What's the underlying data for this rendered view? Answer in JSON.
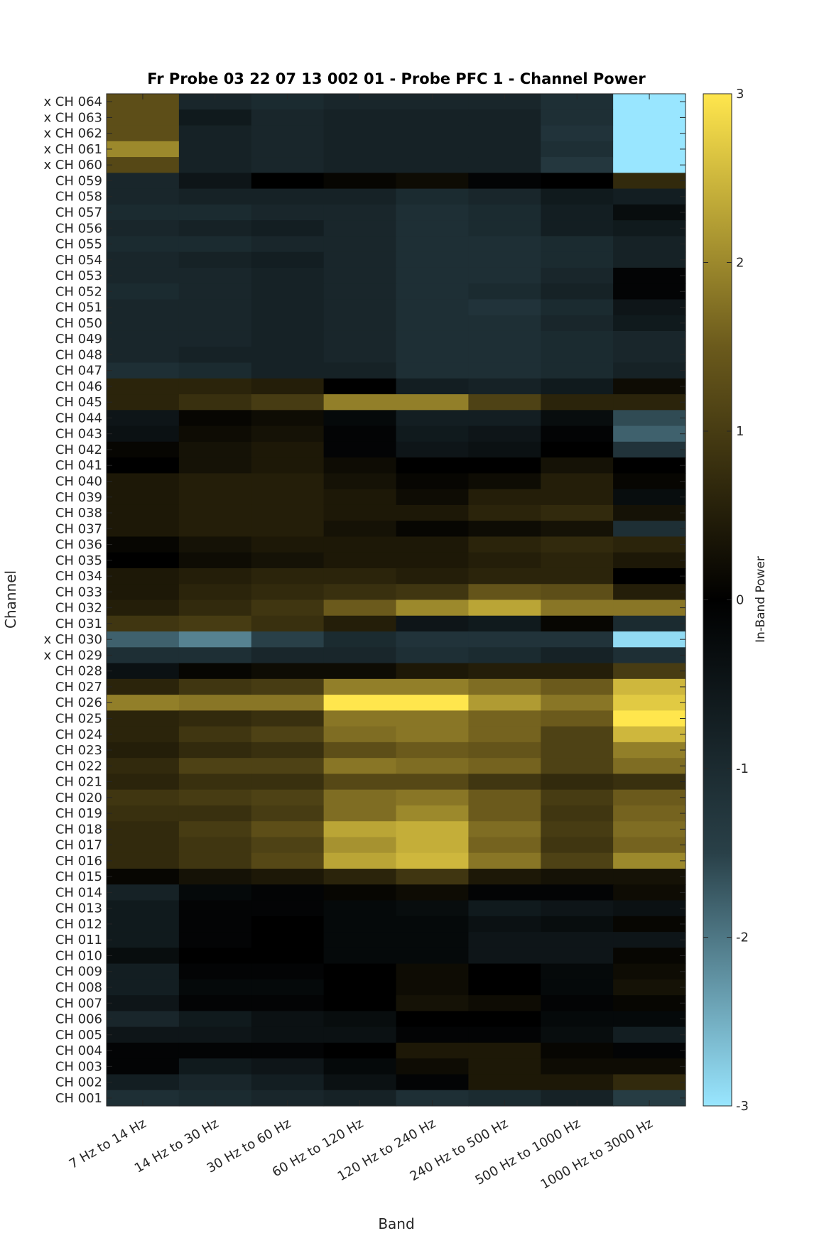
{
  "chart_data": {
    "type": "heatmap",
    "title": "Fr Probe 03 22 07 13 002 01 - Probe PFC 1 - Channel Power",
    "xlabel": "Band",
    "ylabel": "Channel",
    "colorbar_label": "In-Band Power",
    "colorbar_range": [
      -3,
      3
    ],
    "colorbar_ticks": [
      "3",
      "2",
      "1",
      "0",
      "-1",
      "-2",
      "-3"
    ],
    "colormap_stops": [
      "#99e6ff",
      "#294048",
      "#000000",
      "#6b5a1c",
      "#ffe64d"
    ],
    "x_categories": [
      "7 Hz to 14 Hz",
      "14 Hz to 30 Hz",
      "30 Hz to 60 Hz",
      "60 Hz to 120 Hz",
      "120 Hz to 240 Hz",
      "240 Hz to 500 Hz",
      "500 Hz to 1000 Hz",
      "1000 Hz to 3000 Hz"
    ],
    "y_categories": [
      "x CH 064",
      "x CH 063",
      "x CH 062",
      "x CH 061",
      "x CH 060",
      "CH 059",
      "CH 058",
      "CH 057",
      "CH 056",
      "CH 055",
      "CH 054",
      "CH 053",
      "CH 052",
      "CH 051",
      "CH 050",
      "CH 049",
      "CH 048",
      "CH 047",
      "CH 046",
      "CH 045",
      "CH 044",
      "CH 043",
      "CH 042",
      "CH 041",
      "CH 040",
      "CH 039",
      "CH 038",
      "CH 037",
      "CH 036",
      "CH 035",
      "CH 034",
      "CH 033",
      "CH 032",
      "CH 031",
      "x CH 030",
      "x CH 029",
      "CH 028",
      "CH 027",
      "CH 026",
      "CH 025",
      "CH 024",
      "CH 023",
      "CH 022",
      "CH 021",
      "CH 020",
      "CH 019",
      "CH 018",
      "CH 017",
      "CH 016",
      "CH 015",
      "CH 014",
      "CH 013",
      "CH 012",
      "CH 011",
      "CH 010",
      "CH 009",
      "CH 008",
      "CH 007",
      "CH 006",
      "CH 005",
      "CH 004",
      "CH 003",
      "CH 002",
      "CH 001"
    ],
    "values": [
      [
        1.3,
        -0.9,
        -1.0,
        -0.9,
        -0.9,
        -0.9,
        -1.1,
        -3.0
      ],
      [
        1.3,
        -0.6,
        -0.9,
        -0.8,
        -0.8,
        -0.8,
        -1.1,
        -3.0
      ],
      [
        1.3,
        -0.8,
        -0.9,
        -0.8,
        -0.8,
        -0.8,
        -1.2,
        -3.0
      ],
      [
        2.0,
        -0.8,
        -0.9,
        -0.8,
        -0.8,
        -0.8,
        -1.1,
        -3.0
      ],
      [
        1.2,
        -0.8,
        -0.9,
        -0.8,
        -0.8,
        -0.8,
        -1.3,
        -3.0
      ],
      [
        -0.9,
        -0.5,
        0.0,
        0.1,
        0.2,
        -0.1,
        0.0,
        0.7
      ],
      [
        -0.9,
        -0.8,
        -0.8,
        -0.8,
        -1.0,
        -0.9,
        -0.6,
        -0.7
      ],
      [
        -1.0,
        -1.0,
        -0.9,
        -0.9,
        -1.1,
        -1.0,
        -0.7,
        -0.3
      ],
      [
        -0.9,
        -0.8,
        -0.7,
        -0.9,
        -1.1,
        -1.0,
        -0.7,
        -0.6
      ],
      [
        -1.0,
        -1.0,
        -0.9,
        -0.9,
        -1.1,
        -1.1,
        -1.0,
        -0.8
      ],
      [
        -0.9,
        -0.8,
        -0.7,
        -0.9,
        -1.1,
        -1.1,
        -1.0,
        -0.8
      ],
      [
        -0.9,
        -0.9,
        -0.8,
        -0.9,
        -1.1,
        -1.1,
        -0.9,
        -0.1
      ],
      [
        -1.0,
        -0.9,
        -0.8,
        -0.9,
        -1.1,
        -1.0,
        -0.8,
        -0.1
      ],
      [
        -0.9,
        -0.9,
        -0.8,
        -0.9,
        -1.1,
        -1.2,
        -1.0,
        -0.5
      ],
      [
        -0.9,
        -0.9,
        -0.8,
        -0.9,
        -1.1,
        -1.1,
        -0.9,
        -0.6
      ],
      [
        -0.9,
        -0.9,
        -0.8,
        -0.9,
        -1.1,
        -1.1,
        -1.0,
        -0.9
      ],
      [
        -0.9,
        -0.8,
        -0.8,
        -0.9,
        -1.1,
        -1.1,
        -1.0,
        -0.9
      ],
      [
        -1.1,
        -1.0,
        -0.8,
        -0.8,
        -1.1,
        -1.1,
        -1.0,
        -0.8
      ],
      [
        0.6,
        0.6,
        0.5,
        0.0,
        -0.7,
        -0.8,
        -0.6,
        0.2
      ],
      [
        0.6,
        0.8,
        1.0,
        1.9,
        1.9,
        1.1,
        0.6,
        0.6
      ],
      [
        -0.5,
        0.1,
        0.2,
        -0.2,
        -0.7,
        -0.7,
        -0.3,
        -1.6
      ],
      [
        -0.4,
        0.2,
        0.3,
        -0.1,
        -0.6,
        -0.5,
        -0.1,
        -1.8
      ],
      [
        0.1,
        0.3,
        0.4,
        -0.1,
        -0.5,
        -0.4,
        0.0,
        -1.2
      ],
      [
        0.0,
        0.3,
        0.4,
        0.2,
        0.0,
        0.0,
        0.3,
        0.0
      ],
      [
        0.4,
        0.5,
        0.5,
        0.3,
        0.1,
        0.2,
        0.5,
        0.1
      ],
      [
        0.4,
        0.5,
        0.5,
        0.4,
        0.2,
        0.5,
        0.5,
        -0.3
      ],
      [
        0.4,
        0.5,
        0.5,
        0.4,
        0.4,
        0.6,
        0.7,
        0.3
      ],
      [
        0.4,
        0.5,
        0.5,
        0.3,
        0.1,
        0.2,
        0.3,
        -1.1
      ],
      [
        0.1,
        0.3,
        0.4,
        0.4,
        0.4,
        0.6,
        0.7,
        0.6
      ],
      [
        0.0,
        0.2,
        0.3,
        0.4,
        0.4,
        0.5,
        0.6,
        0.4
      ],
      [
        0.4,
        0.5,
        0.6,
        0.6,
        0.5,
        0.6,
        0.6,
        0.0
      ],
      [
        0.4,
        0.6,
        0.7,
        0.8,
        0.9,
        1.4,
        1.3,
        0.5
      ],
      [
        0.5,
        0.7,
        0.9,
        1.5,
        2.0,
        2.3,
        1.8,
        1.8
      ],
      [
        0.9,
        1.0,
        0.8,
        0.5,
        -0.5,
        -0.6,
        0.1,
        -1.0
      ],
      [
        -1.8,
        -2.1,
        -1.5,
        -1.0,
        -1.2,
        -1.2,
        -1.2,
        -2.9
      ],
      [
        -1.1,
        -1.1,
        -0.9,
        -0.9,
        -1.1,
        -1.0,
        -0.8,
        -1.1
      ],
      [
        -0.4,
        0.1,
        0.2,
        0.2,
        0.4,
        0.5,
        0.5,
        1.0
      ],
      [
        0.6,
        0.9,
        1.0,
        1.9,
        1.9,
        1.7,
        1.5,
        2.5
      ],
      [
        1.9,
        1.8,
        1.8,
        3.0,
        3.0,
        2.2,
        1.8,
        2.7
      ],
      [
        0.6,
        0.7,
        0.8,
        1.8,
        1.8,
        1.6,
        1.5,
        3.0
      ],
      [
        0.6,
        0.9,
        1.1,
        1.7,
        1.8,
        1.6,
        1.1,
        2.5
      ],
      [
        0.5,
        0.7,
        0.8,
        1.3,
        1.5,
        1.4,
        1.1,
        1.9
      ],
      [
        0.7,
        1.1,
        1.1,
        1.8,
        1.7,
        1.6,
        1.1,
        1.7
      ],
      [
        0.6,
        0.8,
        0.8,
        1.2,
        1.2,
        0.9,
        0.7,
        0.8
      ],
      [
        0.9,
        1.0,
        1.1,
        1.7,
        1.8,
        1.5,
        1.0,
        1.5
      ],
      [
        0.8,
        0.8,
        1.0,
        1.7,
        2.0,
        1.5,
        0.9,
        1.6
      ],
      [
        0.7,
        1.0,
        1.3,
        2.3,
        2.4,
        1.7,
        1.0,
        1.7
      ],
      [
        0.7,
        0.9,
        1.1,
        2.1,
        2.4,
        1.6,
        0.9,
        1.6
      ],
      [
        0.7,
        0.9,
        1.2,
        2.3,
        2.5,
        1.8,
        1.1,
        2.0
      ],
      [
        0.1,
        0.3,
        0.4,
        0.6,
        0.9,
        0.4,
        0.3,
        0.3
      ],
      [
        -0.8,
        -0.2,
        -0.1,
        0.1,
        0.2,
        -0.1,
        -0.1,
        0.2
      ],
      [
        -0.6,
        -0.1,
        -0.1,
        -0.2,
        -0.3,
        -0.6,
        -0.5,
        -0.4
      ],
      [
        -0.6,
        -0.1,
        0.0,
        -0.2,
        -0.2,
        -0.4,
        -0.3,
        0.1
      ],
      [
        -0.6,
        -0.1,
        0.0,
        -0.2,
        -0.2,
        -0.5,
        -0.5,
        -0.5
      ],
      [
        -0.3,
        0.0,
        0.0,
        -0.2,
        -0.2,
        -0.5,
        -0.5,
        0.1
      ],
      [
        -0.7,
        -0.1,
        -0.1,
        0.0,
        0.2,
        0.0,
        -0.2,
        0.2
      ],
      [
        -0.7,
        -0.2,
        -0.2,
        0.0,
        0.2,
        0.0,
        -0.2,
        0.3
      ],
      [
        -0.5,
        -0.1,
        -0.1,
        0.0,
        0.3,
        0.2,
        -0.1,
        0.1
      ],
      [
        -0.9,
        -0.6,
        -0.4,
        -0.3,
        0.0,
        0.0,
        -0.2,
        -0.2
      ],
      [
        -0.5,
        -0.5,
        -0.4,
        -0.4,
        -0.1,
        -0.1,
        -0.3,
        -0.7
      ],
      [
        -0.1,
        -0.1,
        -0.1,
        0.0,
        0.4,
        0.4,
        0.1,
        -0.1
      ],
      [
        -0.1,
        -0.6,
        -0.5,
        -0.2,
        0.2,
        0.4,
        0.2,
        0.2
      ],
      [
        -0.7,
        -0.9,
        -0.7,
        -0.4,
        -0.1,
        0.4,
        0.4,
        0.7
      ],
      [
        -1.1,
        -1.0,
        -0.9,
        -0.8,
        -1.1,
        -1.0,
        -0.8,
        -1.4
      ]
    ]
  }
}
